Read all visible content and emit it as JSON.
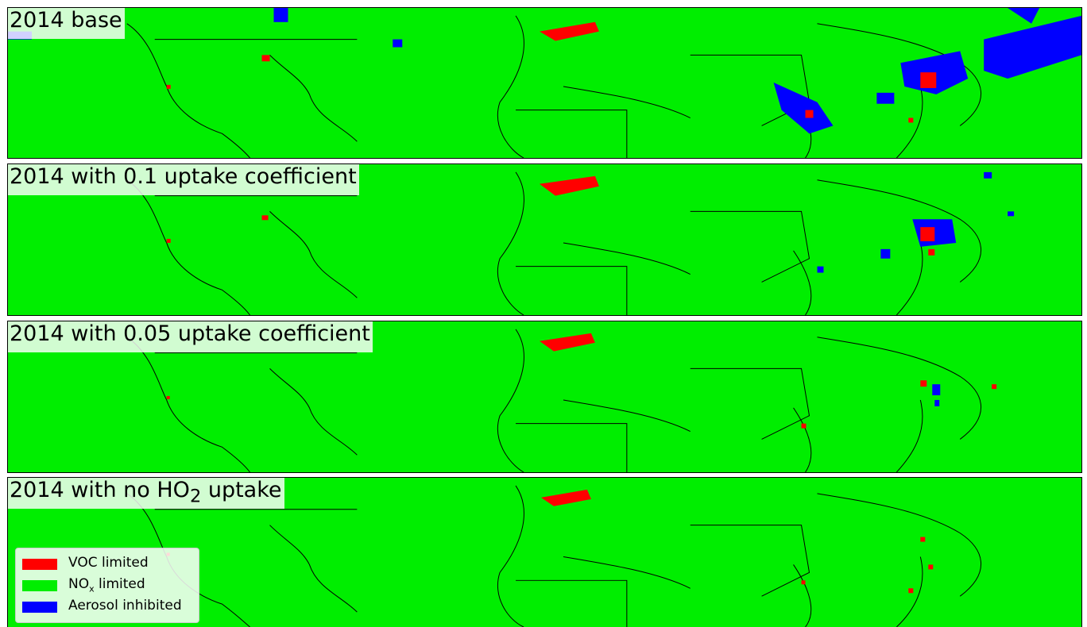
{
  "panels": [
    {
      "title_prefix": "2014 base",
      "title_sub": "",
      "title_suffix": ""
    },
    {
      "title_prefix": "2014 with 0.1 uptake coefficient",
      "title_sub": "",
      "title_suffix": ""
    },
    {
      "title_prefix": "2014 with 0.05 uptake coefficient",
      "title_sub": "",
      "title_suffix": ""
    },
    {
      "title_prefix": "2014 with no HO",
      "title_sub": "2",
      "title_suffix": " uptake"
    }
  ],
  "legend": {
    "items": [
      {
        "label_prefix": "VOC limited",
        "label_sub": "",
        "label_suffix": "",
        "color": "#ff0000"
      },
      {
        "label_prefix": "NO",
        "label_sub": "x",
        "label_suffix": " limited",
        "color": "#00ee00"
      },
      {
        "label_prefix": "Aerosol inhibited",
        "label_sub": "",
        "label_suffix": "",
        "color": "#0000ff"
      }
    ]
  },
  "colors": {
    "voc_limited": "#ff0000",
    "nox_limited": "#00ee00",
    "aerosol_inhibited": "#0000ff",
    "coastline": "#000000"
  }
}
